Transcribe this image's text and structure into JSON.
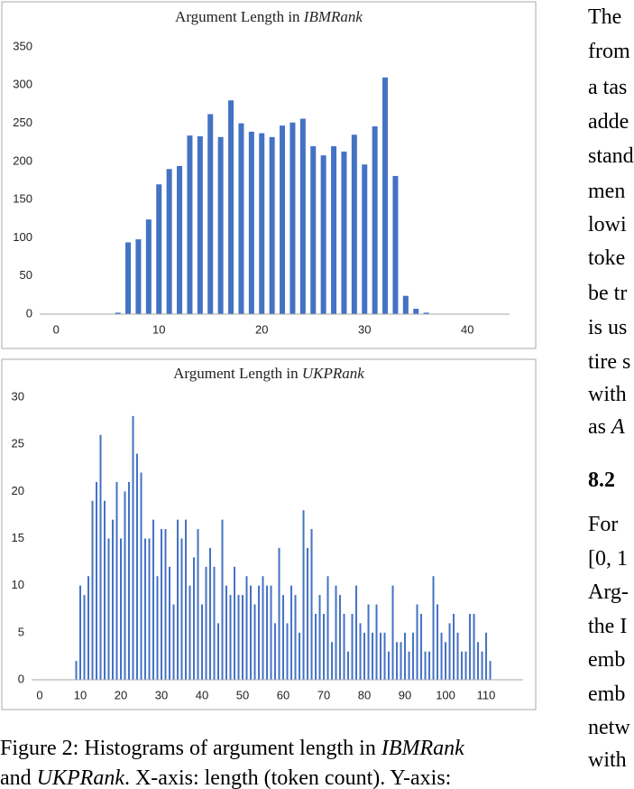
{
  "chart_data": [
    {
      "type": "bar",
      "title": "Argument Length in",
      "title_italic": "IBMRank",
      "color": "#4472c4",
      "x": [
        6,
        7,
        8,
        9,
        10,
        11,
        12,
        13,
        14,
        15,
        16,
        17,
        18,
        19,
        20,
        21,
        22,
        23,
        24,
        25,
        26,
        27,
        28,
        29,
        30,
        31,
        32,
        33,
        34,
        35,
        36
      ],
      "values": [
        2,
        94,
        98,
        124,
        170,
        190,
        194,
        234,
        233,
        262,
        232,
        280,
        250,
        239,
        237,
        232,
        247,
        251,
        256,
        220,
        208,
        220,
        213,
        235,
        196,
        246,
        310,
        181,
        24,
        7,
        2
      ],
      "xlim": [
        -1.6,
        44.1
      ],
      "xticks": [
        0,
        10,
        20,
        30,
        40
      ],
      "ylim": [
        0,
        350
      ],
      "yticks": [
        0,
        50,
        100,
        150,
        200,
        250,
        300,
        350
      ]
    },
    {
      "type": "bar",
      "title": "Argument Length in",
      "title_italic": "UKPRank",
      "color": "#4472c4",
      "x": [
        9,
        10,
        11,
        12,
        13,
        14,
        15,
        16,
        17,
        18,
        19,
        20,
        21,
        22,
        23,
        24,
        25,
        26,
        27,
        28,
        29,
        30,
        31,
        32,
        33,
        34,
        35,
        36,
        37,
        38,
        39,
        40,
        41,
        42,
        43,
        44,
        45,
        46,
        47,
        48,
        49,
        50,
        51,
        52,
        53,
        54,
        55,
        56,
        57,
        58,
        59,
        60,
        61,
        62,
        63,
        64,
        65,
        66,
        67,
        68,
        69,
        70,
        71,
        72,
        73,
        74,
        75,
        76,
        77,
        78,
        79,
        80,
        81,
        82,
        83,
        84,
        85,
        86,
        87,
        88,
        89,
        90,
        91,
        92,
        93,
        94,
        95,
        96,
        97,
        98,
        99,
        100,
        101,
        102,
        103,
        104,
        105,
        106,
        107,
        108,
        109,
        110,
        111
      ],
      "values": [
        2,
        10,
        9,
        11,
        19,
        21,
        26,
        19,
        15,
        17,
        21,
        15,
        20,
        21,
        28,
        24,
        22,
        15,
        15,
        17,
        11,
        16,
        16,
        12,
        8,
        17,
        15,
        17,
        10,
        13,
        16,
        8,
        12,
        14,
        12,
        6,
        17,
        10,
        9,
        12,
        9,
        9,
        11,
        10,
        8,
        10,
        11,
        10,
        10,
        6,
        14,
        9,
        6,
        10,
        9,
        5,
        18,
        14,
        16,
        7,
        9,
        7,
        11,
        4,
        10,
        9,
        7,
        3,
        7,
        10,
        6,
        5,
        8,
        5,
        8,
        5,
        5,
        3,
        10,
        4,
        4,
        5,
        3,
        5,
        8,
        7,
        3,
        3,
        11,
        8,
        5,
        4,
        6,
        7,
        5,
        3,
        3,
        7,
        7,
        4,
        3,
        5,
        2
      ],
      "xlim": [
        -2,
        119.1
      ],
      "xticks": [
        0,
        10,
        20,
        30,
        40,
        50,
        60,
        70,
        80,
        90,
        100,
        110
      ],
      "ylim": [
        0,
        30
      ],
      "yticks": [
        0,
        5,
        10,
        15,
        20,
        25,
        30
      ]
    }
  ],
  "caption": {
    "line1": [
      "Figure 2: Histograms of argument length in",
      "IBMRank"
    ],
    "line2": [
      "and",
      "UKPRank",
      ". X-axis: length (token count). Y-axis:"
    ]
  },
  "right_column": {
    "lines_a": [
      "The",
      "from",
      "a tas",
      "adde",
      "stand",
      "men",
      "lowi",
      "toke",
      "be tr",
      "is us",
      "tire s",
      "with",
      "as"
    ],
    "italic_end": "A",
    "heading": "8.2",
    "lines_b": [
      "For",
      "[0, 1",
      "Arg-",
      "the I",
      "emb",
      "emb",
      "netw",
      "with"
    ]
  }
}
